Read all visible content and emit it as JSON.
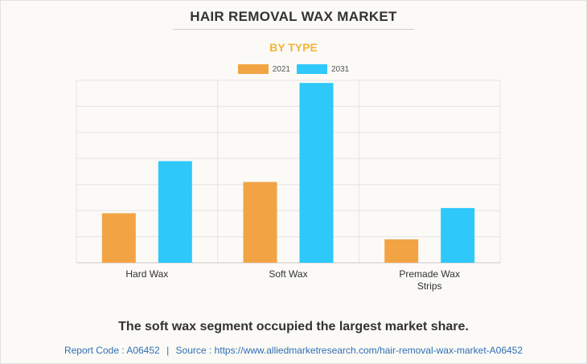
{
  "header": {
    "title": "HAIR REMOVAL WAX MARKET",
    "subtitle": "BY TYPE"
  },
  "colors": {
    "series_2021": "#f2a444",
    "series_2031": "#2ec8fb",
    "subtitle": "#f5b335",
    "footer": "#2f6fb3"
  },
  "chart_data": {
    "type": "bar",
    "categories": [
      "Hard Wax",
      "Soft Wax",
      "Premade Wax Strips"
    ],
    "category_lines": [
      [
        "Hard Wax"
      ],
      [
        "Soft Wax"
      ],
      [
        "Premade Wax",
        "Strips"
      ]
    ],
    "series": [
      {
        "name": "2021",
        "values": [
          1.9,
          3.1,
          0.9
        ]
      },
      {
        "name": "2031",
        "values": [
          3.9,
          6.9,
          2.1
        ]
      }
    ],
    "ylim": [
      0,
      7
    ],
    "grid": true,
    "legend_position": "top-center",
    "xlabel": "",
    "ylabel": ""
  },
  "caption": "The soft wax segment occupied the largest market share.",
  "footer": {
    "report_code": "Report Code : A06452",
    "separator": "|",
    "source": "Source : https://www.alliedmarketresearch.com/hair-removal-wax-market-A06452"
  }
}
